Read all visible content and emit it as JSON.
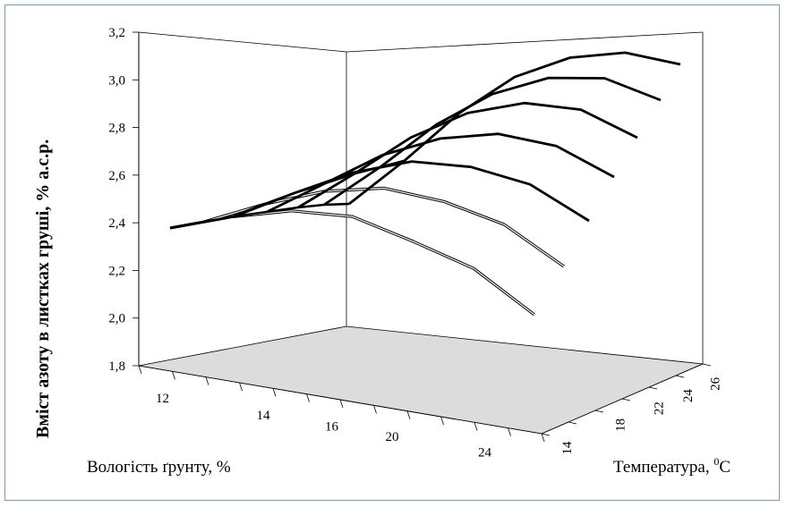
{
  "chart_data": {
    "type": "surface3d",
    "xlabel": "Вологість ґрунту, %",
    "zlabel": "Вміст азоту в листках груші,  % а.с.р.",
    "zlim": [
      1.8,
      3.2
    ],
    "z_ticks": [
      "1,8",
      "2,0",
      "2,2",
      "2,4",
      "2,6",
      "2,8",
      "3,0",
      "3,2"
    ],
    "moisture_ticks": [
      "12",
      "14",
      "16",
      "20",
      "24"
    ],
    "temp_ticks": [
      "14",
      "18",
      "22",
      "24",
      "26"
    ],
    "temp_label_main": "Температура, ",
    "temp_label_sup": "0",
    "temp_label_unit": "С",
    "series_note": "Each line is one soil-moisture level; nitrogen content vs temperature 14–26",
    "series": [
      {
        "moisture_index": 0,
        "values": [
          2.39,
          2.43,
          2.45,
          2.42,
          2.31,
          2.19,
          1.99
        ]
      },
      {
        "moisture_index": 1,
        "values": [
          2.39,
          2.45,
          2.49,
          2.49,
          2.42,
          2.31,
          2.12
        ]
      },
      {
        "moisture_index": 2,
        "values": [
          2.39,
          2.47,
          2.54,
          2.57,
          2.53,
          2.44,
          2.27
        ]
      },
      {
        "moisture_index": 3,
        "values": [
          2.4,
          2.5,
          2.6,
          2.65,
          2.65,
          2.58,
          2.43
        ]
      },
      {
        "moisture_index": 4,
        "values": [
          2.41,
          2.54,
          2.68,
          2.77,
          2.8,
          2.76,
          2.63
        ]
      },
      {
        "moisture_index": 5,
        "values": [
          2.41,
          2.57,
          2.75,
          2.88,
          2.95,
          2.95,
          2.86
        ]
      },
      {
        "moisture_index": 6,
        "values": [
          2.41,
          2.6,
          2.81,
          2.97,
          3.06,
          3.09,
          3.05
        ]
      }
    ]
  }
}
